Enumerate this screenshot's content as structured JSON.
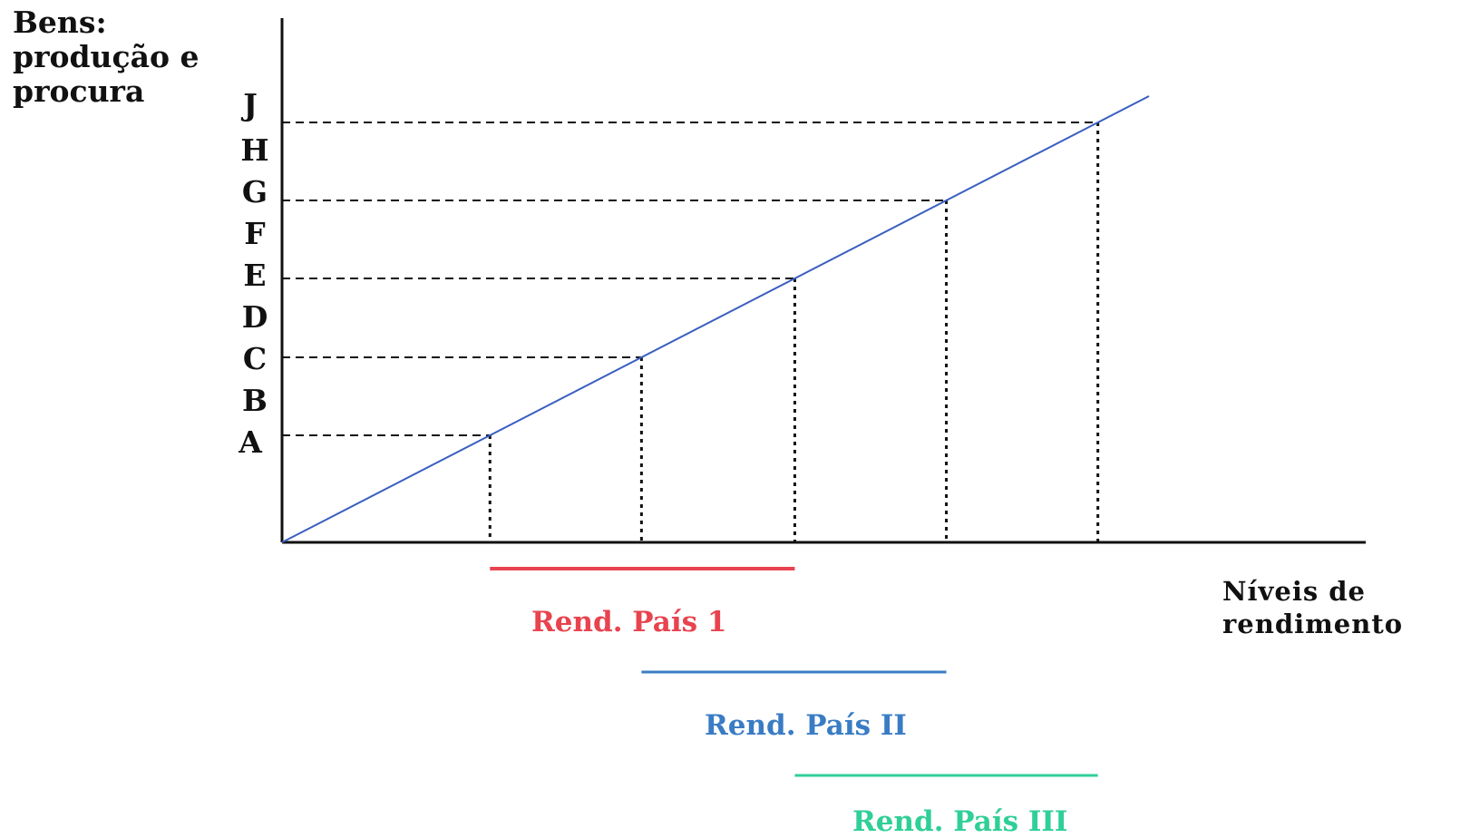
{
  "y_axis": {
    "label_lines": [
      "Bens:",
      "produção e",
      "procura"
    ]
  },
  "x_axis": {
    "label_lines": [
      "Níveis de",
      "rendimento"
    ]
  },
  "y_levels": [
    "A",
    "B",
    "C",
    "D",
    "E",
    "F",
    "G",
    "H",
    "J"
  ],
  "countries": [
    {
      "name": "Rend. País 1",
      "color": "#e8434f",
      "from_level": "A",
      "to_level": "E"
    },
    {
      "name": "Rend. País II",
      "color": "#3a7cc4",
      "from_level": "C",
      "to_level": "G"
    },
    {
      "name": "Rend. País III",
      "color": "#2fcf97",
      "from_level": "E",
      "to_level": "J"
    }
  ],
  "line_color": "#3a5fc0",
  "guide_points": [
    "A",
    "C",
    "E",
    "G",
    "J"
  ]
}
